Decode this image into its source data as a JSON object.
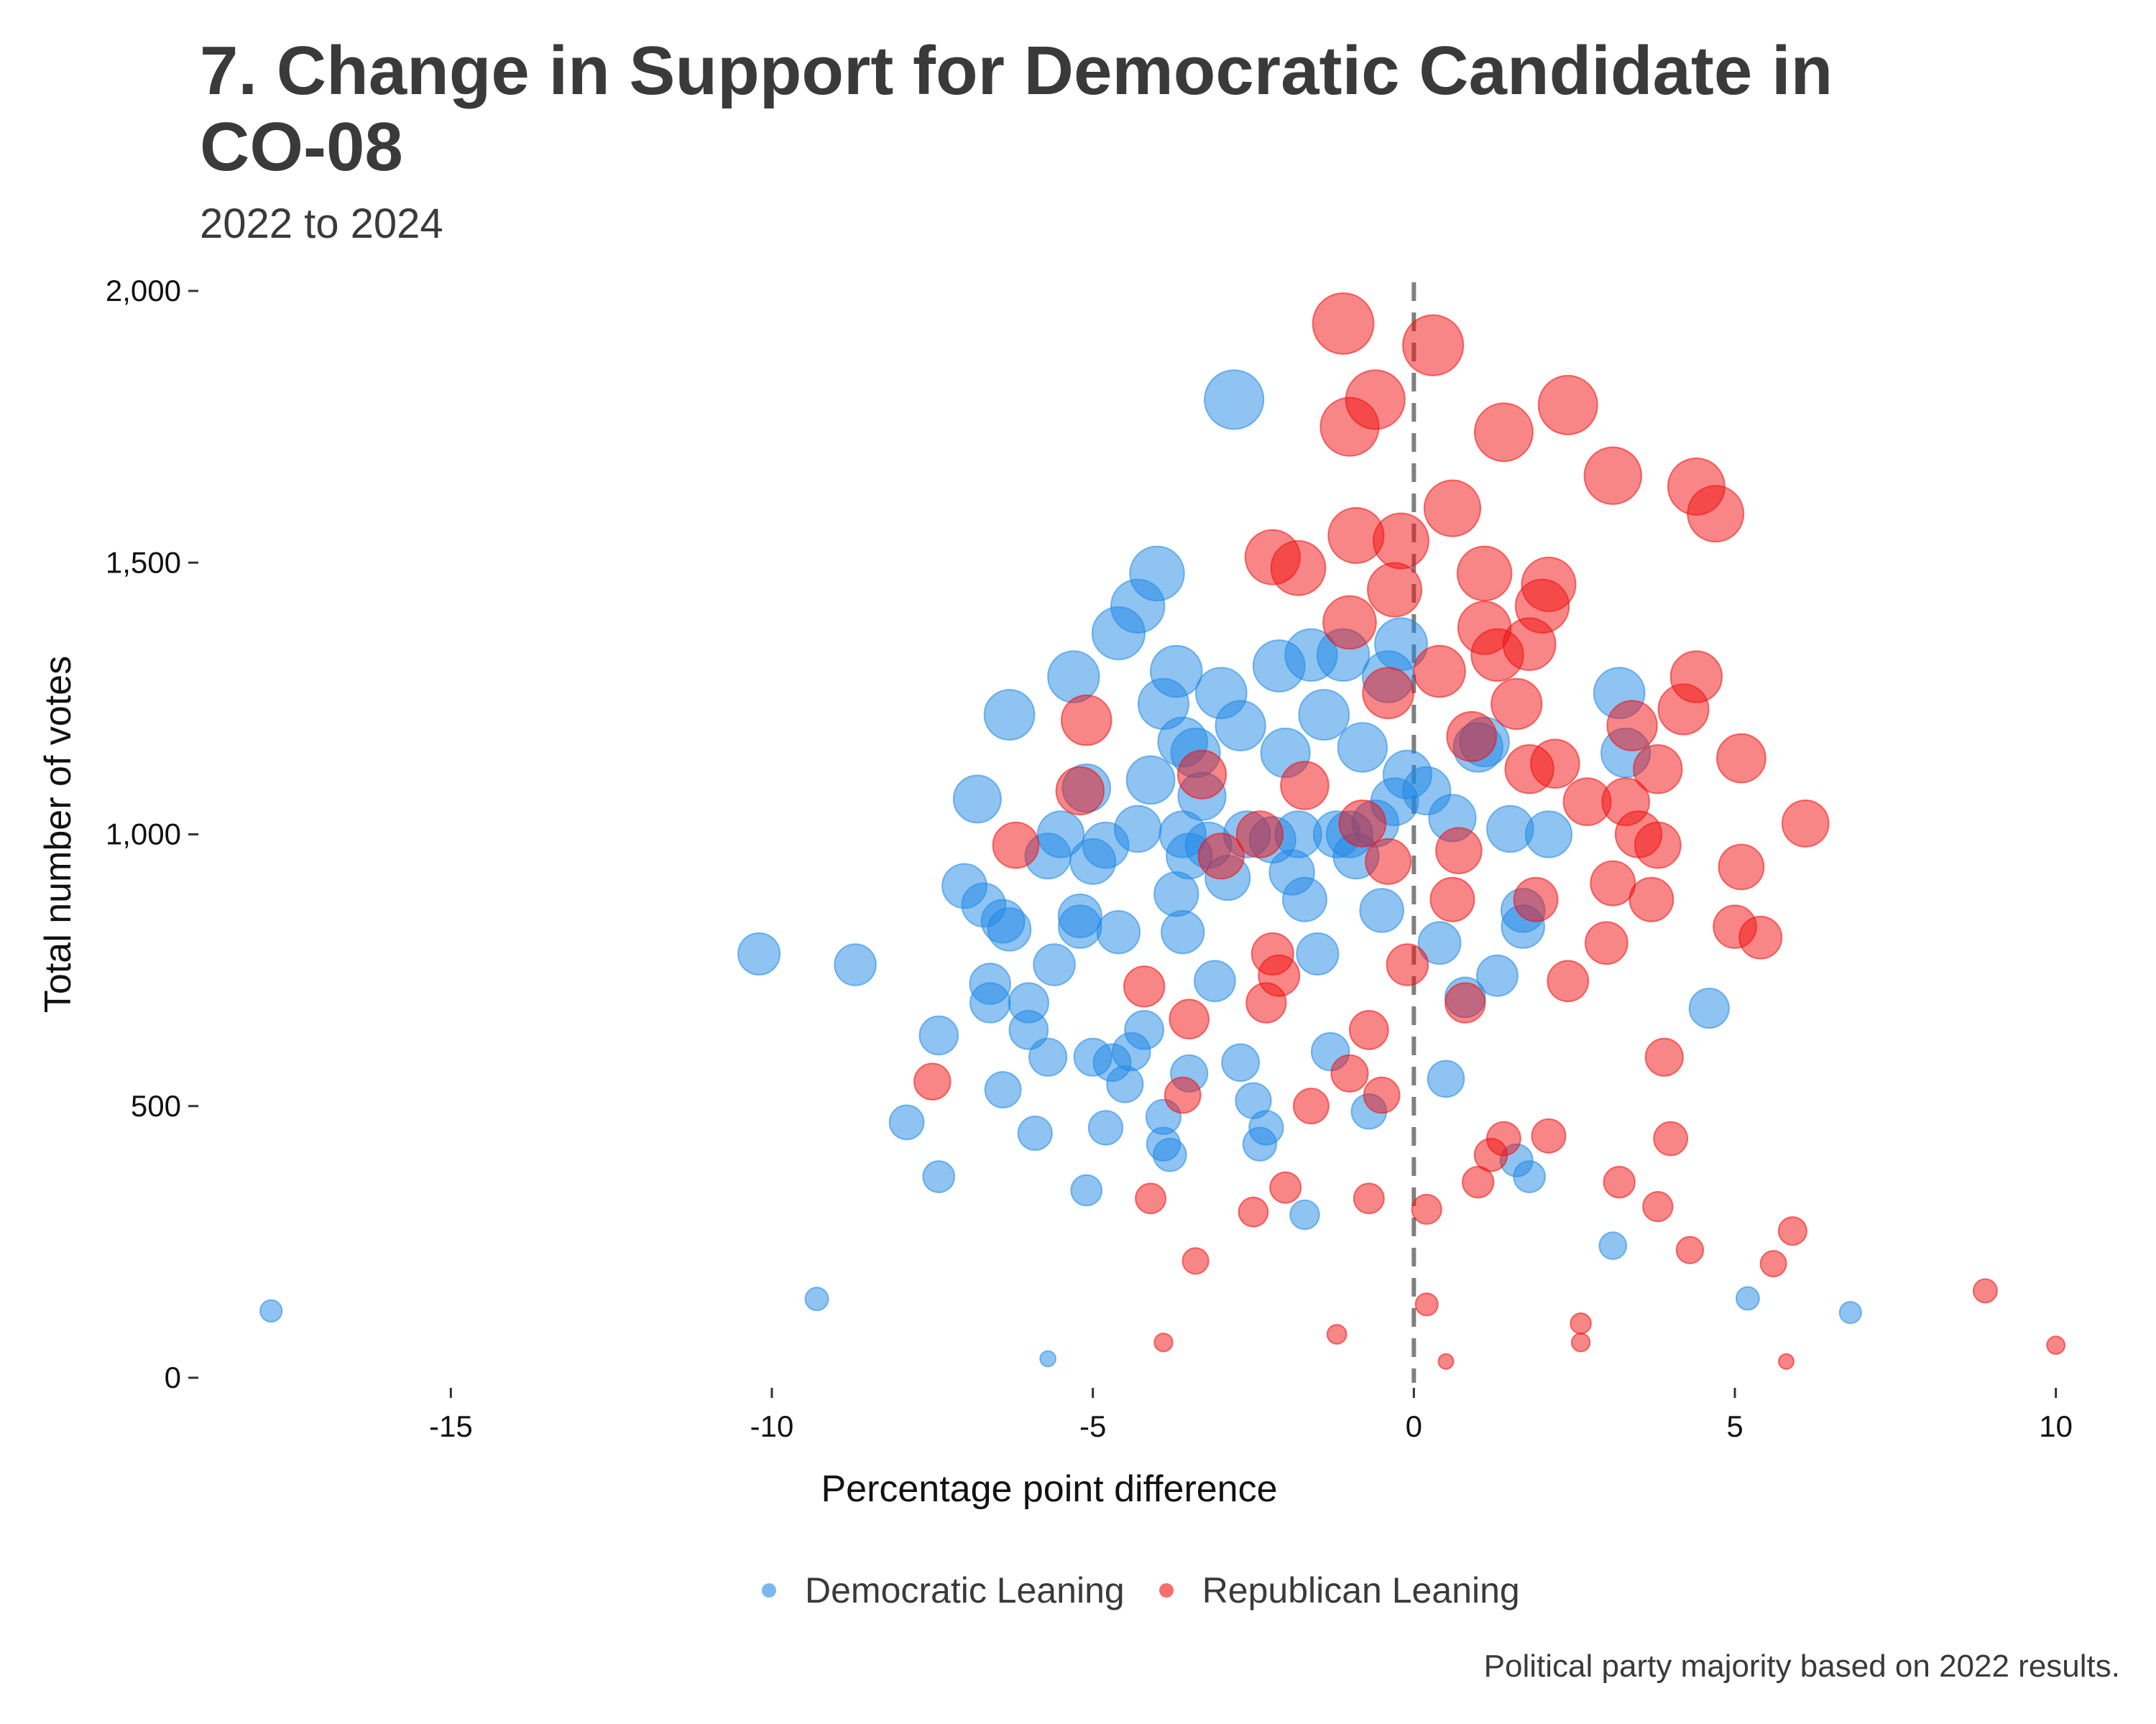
{
  "title": "7. Change in Support for Democratic Candidate in CO-08",
  "subtitle": "2022 to 2024",
  "caption": "Political party majority based on 2022 results.",
  "colors": {
    "democratic": "#1e88e5",
    "republican": "#f20d0d",
    "reference_line": "#808080"
  },
  "legend": {
    "democratic": "Democratic Leaning",
    "republican": "Republican Leaning"
  },
  "chart_data": {
    "type": "scatter",
    "xlabel": "Percentage point difference",
    "ylabel": "Total number of votes",
    "xlim": [
      -19,
      11
    ],
    "ylim": [
      0,
      2000
    ],
    "x_ticks": [
      -15,
      -10,
      -5,
      0,
      5,
      10
    ],
    "y_ticks": [
      0,
      500,
      1000,
      1500,
      2000
    ],
    "x_tick_labels": [
      "-15",
      "-10",
      "-5",
      "0",
      "5",
      "10"
    ],
    "y_tick_labels": [
      "0",
      "500",
      "1,000",
      "1,500",
      "2,000"
    ],
    "reference_line": {
      "x": 0,
      "style": "dashed"
    },
    "legend_position": "bottom",
    "point_size": "proportional to total votes",
    "series": [
      {
        "name": "Democratic Leaning",
        "points": [
          [
            -17.8,
            123
          ],
          [
            -9.3,
            145
          ],
          [
            -5.7,
            35
          ],
          [
            5.2,
            146
          ],
          [
            6.8,
            120
          ],
          [
            3.1,
            243
          ],
          [
            -10.2,
            780
          ],
          [
            -8.7,
            760
          ],
          [
            -7.9,
            470
          ],
          [
            -7.4,
            370
          ],
          [
            -7.4,
            630
          ],
          [
            -7.0,
            905
          ],
          [
            -6.8,
            1065
          ],
          [
            -6.7,
            870
          ],
          [
            -6.4,
            530
          ],
          [
            -6.6,
            725
          ],
          [
            -6.6,
            690
          ],
          [
            -6.4,
            840
          ],
          [
            -6.3,
            825
          ],
          [
            -6.3,
            1220
          ],
          [
            -6.0,
            640
          ],
          [
            -6.0,
            690
          ],
          [
            -5.9,
            450
          ],
          [
            -5.7,
            960
          ],
          [
            -5.7,
            590
          ],
          [
            -5.6,
            760
          ],
          [
            -5.5,
            1000
          ],
          [
            -5.3,
            1290
          ],
          [
            -5.2,
            850
          ],
          [
            -5.2,
            830
          ],
          [
            -5.1,
            345
          ],
          [
            -5.1,
            1085
          ],
          [
            -5.0,
            590
          ],
          [
            -5.0,
            950
          ],
          [
            -4.8,
            980
          ],
          [
            -4.8,
            460
          ],
          [
            -4.7,
            580
          ],
          [
            -4.6,
            820
          ],
          [
            -4.6,
            1370
          ],
          [
            -4.5,
            540
          ],
          [
            -4.4,
            600
          ],
          [
            -4.3,
            1420
          ],
          [
            -4.3,
            1010
          ],
          [
            -4.2,
            640
          ],
          [
            -4.1,
            1100
          ],
          [
            -4.0,
            1480
          ],
          [
            -3.9,
            1240
          ],
          [
            -3.9,
            480
          ],
          [
            -3.9,
            430
          ],
          [
            -3.8,
            410
          ],
          [
            -3.7,
            890
          ],
          [
            -3.7,
            1300
          ],
          [
            -3.6,
            1170
          ],
          [
            -3.6,
            1000
          ],
          [
            -3.6,
            820
          ],
          [
            -3.5,
            560
          ],
          [
            -3.5,
            960
          ],
          [
            -3.4,
            1150
          ],
          [
            -3.3,
            1070
          ],
          [
            -3.2,
            980
          ],
          [
            -3.1,
            730
          ],
          [
            -3.0,
            1260
          ],
          [
            -2.9,
            920
          ],
          [
            -2.8,
            1800
          ],
          [
            -2.7,
            1200
          ],
          [
            -2.7,
            580
          ],
          [
            -2.6,
            1000
          ],
          [
            -2.5,
            510
          ],
          [
            -2.4,
            430
          ],
          [
            -2.3,
            460
          ],
          [
            -2.2,
            990
          ],
          [
            -2.1,
            1310
          ],
          [
            -2.0,
            1150
          ],
          [
            -1.9,
            930
          ],
          [
            -1.8,
            1000
          ],
          [
            -1.7,
            300
          ],
          [
            -1.7,
            880
          ],
          [
            -1.6,
            1330
          ],
          [
            -1.5,
            780
          ],
          [
            -1.4,
            1220
          ],
          [
            -1.3,
            600
          ],
          [
            -1.2,
            1000
          ],
          [
            -1.1,
            1330
          ],
          [
            -1.0,
            1000
          ],
          [
            -0.9,
            960
          ],
          [
            -0.8,
            1160
          ],
          [
            -0.7,
            490
          ],
          [
            -0.6,
            1020
          ],
          [
            -0.5,
            860
          ],
          [
            -0.4,
            1290
          ],
          [
            -0.3,
            1060
          ],
          [
            -0.2,
            1350
          ],
          [
            -0.1,
            1110
          ],
          [
            0.2,
            1080
          ],
          [
            0.4,
            800
          ],
          [
            0.5,
            550
          ],
          [
            0.6,
            1030
          ],
          [
            0.8,
            700
          ],
          [
            1.0,
            1160
          ],
          [
            1.1,
            1170
          ],
          [
            1.3,
            740
          ],
          [
            1.5,
            1010
          ],
          [
            1.6,
            400
          ],
          [
            1.7,
            860
          ],
          [
            1.7,
            830
          ],
          [
            1.8,
            370
          ],
          [
            2.1,
            1000
          ],
          [
            3.2,
            1260
          ],
          [
            3.3,
            1150
          ],
          [
            4.6,
            680
          ]
        ]
      },
      {
        "name": "Republican Leaning",
        "points": [
          [
            -7.5,
            545
          ],
          [
            -6.2,
            980
          ],
          [
            -5.2,
            1080
          ],
          [
            -5.1,
            1210
          ],
          [
            -4.2,
            720
          ],
          [
            -4.1,
            330
          ],
          [
            -3.9,
            65
          ],
          [
            -3.6,
            520
          ],
          [
            -3.5,
            660
          ],
          [
            -3.4,
            215
          ],
          [
            -3.3,
            1110
          ],
          [
            -3.0,
            960
          ],
          [
            -2.5,
            305
          ],
          [
            -2.4,
            1000
          ],
          [
            -2.3,
            690
          ],
          [
            -2.2,
            1510
          ],
          [
            -2.2,
            780
          ],
          [
            -2.1,
            740
          ],
          [
            -2.0,
            350
          ],
          [
            -1.8,
            1490
          ],
          [
            -1.7,
            1090
          ],
          [
            -1.6,
            500
          ],
          [
            -1.2,
            80
          ],
          [
            -1.1,
            1940
          ],
          [
            -1.0,
            1390
          ],
          [
            -1.0,
            560
          ],
          [
            -1.0,
            1750
          ],
          [
            -0.9,
            1550
          ],
          [
            -0.8,
            1020
          ],
          [
            -0.7,
            640
          ],
          [
            -0.7,
            330
          ],
          [
            -0.6,
            1800
          ],
          [
            -0.5,
            520
          ],
          [
            -0.4,
            950
          ],
          [
            -0.4,
            1260
          ],
          [
            -0.3,
            1450
          ],
          [
            -0.2,
            1540
          ],
          [
            -0.1,
            760
          ],
          [
            0.2,
            310
          ],
          [
            0.2,
            135
          ],
          [
            0.3,
            1900
          ],
          [
            0.4,
            1300
          ],
          [
            0.5,
            30
          ],
          [
            0.6,
            1600
          ],
          [
            0.6,
            880
          ],
          [
            0.7,
            970
          ],
          [
            0.8,
            690
          ],
          [
            0.9,
            1180
          ],
          [
            1.0,
            360
          ],
          [
            1.1,
            1480
          ],
          [
            1.1,
            1380
          ],
          [
            1.2,
            410
          ],
          [
            1.3,
            1330
          ],
          [
            1.4,
            1740
          ],
          [
            1.4,
            440
          ],
          [
            1.6,
            1240
          ],
          [
            1.8,
            1350
          ],
          [
            1.8,
            1120
          ],
          [
            1.9,
            880
          ],
          [
            2.0,
            1420
          ],
          [
            2.1,
            1460
          ],
          [
            2.1,
            445
          ],
          [
            2.2,
            1130
          ],
          [
            2.4,
            1790
          ],
          [
            2.4,
            730
          ],
          [
            2.6,
            100
          ],
          [
            2.6,
            65
          ],
          [
            2.7,
            1060
          ],
          [
            3.0,
            800
          ],
          [
            3.1,
            910
          ],
          [
            3.1,
            1660
          ],
          [
            3.2,
            360
          ],
          [
            3.3,
            1060
          ],
          [
            3.4,
            1200
          ],
          [
            3.5,
            1000
          ],
          [
            3.7,
            880
          ],
          [
            3.8,
            315
          ],
          [
            3.8,
            1120
          ],
          [
            3.8,
            980
          ],
          [
            3.9,
            590
          ],
          [
            4.0,
            440
          ],
          [
            4.2,
            1230
          ],
          [
            4.3,
            235
          ],
          [
            4.4,
            1640
          ],
          [
            4.4,
            1290
          ],
          [
            4.7,
            1590
          ],
          [
            5.0,
            830
          ],
          [
            5.1,
            940
          ],
          [
            5.1,
            1140
          ],
          [
            5.4,
            810
          ],
          [
            5.6,
            210
          ],
          [
            5.8,
            30
          ],
          [
            5.9,
            270
          ],
          [
            6.1,
            1020
          ],
          [
            8.9,
            160
          ],
          [
            10.0,
            60
          ]
        ]
      }
    ]
  }
}
